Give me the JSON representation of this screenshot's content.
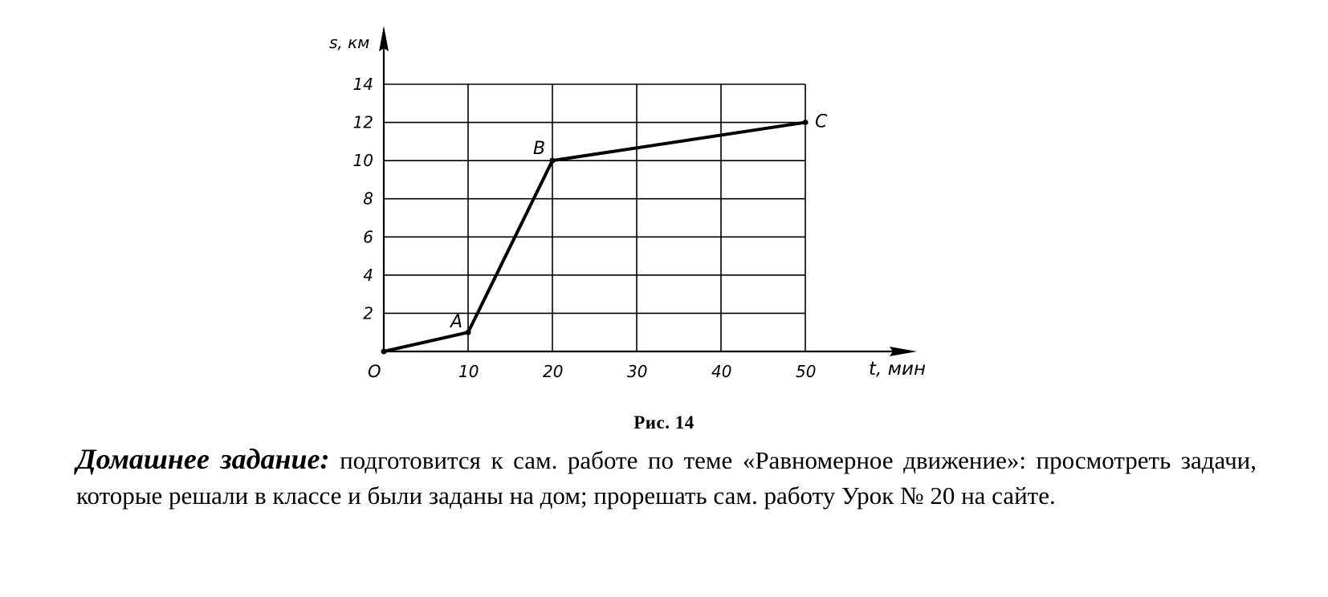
{
  "chart_data": {
    "type": "line",
    "xlabel": "t, мин",
    "ylabel": "s, км",
    "x_ticks": [
      "10",
      "20",
      "30",
      "40",
      "50"
    ],
    "y_ticks": [
      "2",
      "4",
      "6",
      "8",
      "10",
      "12",
      "14"
    ],
    "origin_label": "O",
    "xlim": [
      0,
      50
    ],
    "ylim": [
      0,
      14
    ],
    "grid": true,
    "points": [
      {
        "label": "",
        "x": 0,
        "y": 0
      },
      {
        "label": "A",
        "x": 10,
        "y": 1
      },
      {
        "label": "B",
        "x": 20,
        "y": 10
      },
      {
        "label": "C",
        "x": 50,
        "y": 12
      }
    ]
  },
  "caption": "Рис. 14",
  "homework": {
    "title": "Домашнее задание:",
    "text": " подготовится к сам. работе по теме «Равномерное движение»: просмотреть задачи, которые решали в классе и были заданы на дом; прорешать сам. работу Урок № 20 на сайте."
  }
}
